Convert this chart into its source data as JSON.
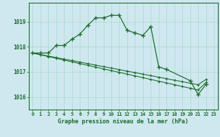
{
  "title": "Graphe pression niveau de la mer (hPa)",
  "background_color": "#cfe8f0",
  "grid_color": "#a8d8c8",
  "line_color": "#1a6b2a",
  "ylim": [
    1015.5,
    1019.75
  ],
  "yticks": [
    1016,
    1017,
    1018,
    1019
  ],
  "series_main": [
    1017.75,
    1017.75,
    1017.75,
    1018.05,
    1018.05,
    1018.3,
    1018.5,
    1018.85,
    1019.15,
    1019.15,
    1019.25,
    1019.25,
    1018.65,
    1018.55,
    1018.45,
    1018.8,
    1017.2,
    1017.1,
    null,
    null,
    1016.65,
    1016.1,
    1016.5,
    null
  ],
  "series_line1": [
    1017.75,
    1017.68,
    1017.61,
    1017.54,
    1017.47,
    1017.4,
    1017.33,
    1017.26,
    1017.19,
    1017.12,
    1017.05,
    1016.98,
    1016.91,
    1016.84,
    1016.77,
    1016.7,
    1016.63,
    1016.56,
    1016.49,
    1016.42,
    1016.35,
    1016.28,
    1016.58,
    null
  ],
  "series_line2": [
    1017.75,
    1017.69,
    1017.63,
    1017.57,
    1017.51,
    1017.45,
    1017.39,
    1017.33,
    1017.27,
    1017.21,
    1017.15,
    1017.09,
    1017.03,
    1016.97,
    1016.91,
    1016.85,
    1016.79,
    1016.73,
    1016.67,
    1016.61,
    1016.55,
    1016.49,
    1016.7,
    null
  ]
}
